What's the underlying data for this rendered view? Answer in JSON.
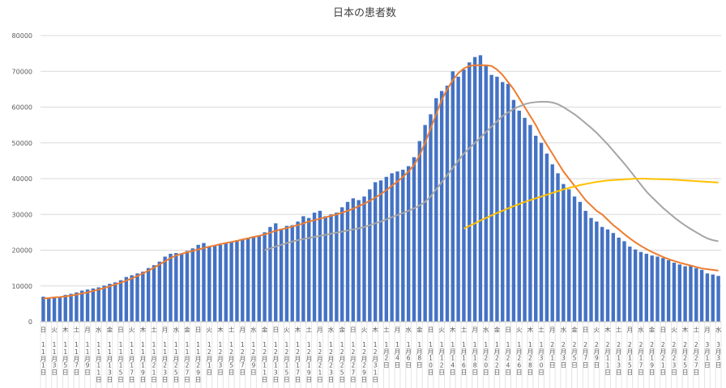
{
  "chart_data": {
    "type": "bar",
    "title": "日本の患者数",
    "color": "#4472c4",
    "ylim": [
      0,
      80000
    ],
    "yticks": [
      0,
      10000,
      20000,
      30000,
      40000,
      50000,
      60000,
      70000,
      80000
    ],
    "grid": true,
    "categories": [
      "11月1日",
      null,
      "11月3日",
      null,
      "11月5日",
      null,
      "11月7日",
      null,
      "11月9日",
      null,
      "11月11日",
      null,
      "11月13日",
      null,
      "11月15日",
      null,
      "11月17日",
      null,
      "11月19日",
      null,
      "11月21日",
      null,
      "11月23日",
      null,
      "11月25日",
      null,
      "11月27日",
      null,
      "11月29日",
      null,
      "12月1日",
      null,
      "12月3日",
      null,
      "12月5日",
      null,
      "12月7日",
      null,
      "12月9日",
      null,
      "12月11日",
      null,
      "12月13日",
      null,
      "12月15日",
      null,
      "12月17日",
      null,
      "12月19日",
      null,
      "12月21日",
      null,
      "12月23日",
      null,
      "12月25日",
      null,
      "12月27日",
      null,
      "12月29日",
      null,
      "12月31日",
      null,
      "1月2日",
      null,
      "1月4日",
      null,
      "1月6日",
      null,
      "1月8日",
      null,
      "1月10日",
      null,
      "1月12日",
      null,
      "1月14日",
      null,
      "1月16日",
      null,
      "1月18日",
      null,
      "1月20日",
      null,
      "1月22日",
      null,
      "1月24日",
      null,
      "1月26日",
      null,
      "1月28日",
      null,
      "1月30日",
      null,
      "2月1日",
      null,
      "2月3日",
      null,
      "2月5日",
      null,
      "2月7日",
      null,
      "2月9日",
      null,
      "2月11日",
      null,
      "2月13日",
      null,
      "2月15日",
      null,
      "2月17日",
      null,
      "2月19日",
      null,
      "2月21日",
      null,
      "2月23日",
      null,
      "2月25日",
      null,
      "2月27日",
      null,
      "3月1日",
      null,
      "3月3日"
    ],
    "weekdays": [
      "日",
      null,
      "火",
      null,
      "木",
      null,
      "土",
      null,
      "月",
      null,
      "水",
      null,
      "金",
      null,
      "日",
      null,
      "火",
      null,
      "木",
      null,
      "土",
      null,
      "月",
      null,
      "水",
      null,
      "金",
      null,
      "日",
      null,
      "火",
      null,
      "木",
      null,
      "土",
      null,
      "月",
      null,
      "水",
      null,
      "金",
      null,
      "日",
      null,
      "火",
      null,
      "木",
      null,
      "土",
      null,
      "月",
      null,
      "水",
      null,
      "金",
      null,
      "日",
      null,
      "火",
      null,
      "木",
      null,
      "土",
      null,
      "月",
      null,
      "水",
      null,
      "金",
      null,
      "日",
      null,
      "火",
      null,
      "木",
      null,
      "土",
      null,
      "月",
      null,
      "水",
      null,
      "金",
      null,
      "日",
      null,
      "火",
      null,
      "木",
      null,
      "土",
      null,
      "月",
      null,
      "水",
      null,
      "金",
      null,
      "日",
      null,
      "火",
      null,
      "木",
      null,
      "土",
      null,
      "月",
      null,
      "水",
      null,
      "金",
      null,
      "日",
      null,
      "火",
      null,
      "木",
      null,
      "土",
      null,
      "月",
      null,
      "水"
    ],
    "values": [
      7000,
      6600,
      6800,
      7000,
      7500,
      7800,
      8200,
      8700,
      9000,
      9300,
      9600,
      10100,
      10600,
      11000,
      11600,
      12500,
      13000,
      13500,
      14000,
      15000,
      15800,
      16800,
      18200,
      19000,
      19200,
      19000,
      19800,
      20500,
      21500,
      22000,
      21000,
      21200,
      21500,
      22000,
      22300,
      22800,
      23000,
      23500,
      23800,
      24200,
      25000,
      26500,
      27500,
      26000,
      26800,
      27000,
      28000,
      29500,
      29000,
      30500,
      31000,
      29500,
      30000,
      30500,
      32000,
      33500,
      34500,
      34000,
      35000,
      37000,
      39000,
      39500,
      40500,
      41500,
      42000,
      42500,
      43500,
      46000,
      50500,
      55000,
      58000,
      62500,
      64500,
      66000,
      70000,
      68500,
      70500,
      72500,
      74000,
      74500,
      71500,
      69000,
      68500,
      67000,
      66500,
      62000,
      59000,
      57000,
      55000,
      52000,
      50000,
      47000,
      44000,
      41500,
      38500,
      37000,
      35000,
      33500,
      31000,
      29000,
      28000,
      26500,
      25800,
      24800,
      23500,
      22500,
      21000,
      20200,
      19500,
      19000,
      18500,
      18200,
      17800,
      17200,
      16500,
      16000,
      15500,
      15800,
      15000,
      14500,
      13500,
      13200,
      12800
    ],
    "lines": [
      {
        "color": "#ed7d31",
        "values": [
          6500,
          6600,
          6800,
          6900,
          7100,
          7300,
          7600,
          7900,
          8200,
          8600,
          9000,
          9400,
          9900,
          10400,
          10900,
          11500,
          12100,
          12800,
          13500,
          14300,
          15100,
          16000,
          16900,
          17800,
          18500,
          19000,
          19400,
          19800,
          20200,
          20600,
          21000,
          21300,
          21700,
          22000,
          22300,
          22600,
          23000,
          23300,
          23700,
          24000,
          24400,
          24900,
          25400,
          25800,
          26200,
          26600,
          27000,
          27500,
          28000,
          28400,
          28800,
          29200,
          29600,
          30000,
          30500,
          31000,
          31600,
          32300,
          33000,
          33800,
          34700,
          35700,
          36800,
          38000,
          39200,
          40500,
          42000,
          43800,
          46500,
          50000,
          54000,
          58000,
          62000,
          65000,
          67500,
          69500,
          70800,
          71500,
          71700,
          71700,
          71700,
          71500,
          70500,
          69000,
          67000,
          65000,
          62500,
          60000,
          57500,
          55000,
          52000,
          49500,
          47000,
          44500,
          42000,
          40000,
          38000,
          36000,
          34000,
          32500,
          31000,
          30000,
          28500,
          27000,
          25800,
          24500,
          23300,
          22200,
          21200,
          20300,
          19500,
          18800,
          18100,
          17500,
          17000,
          16500,
          16100,
          15700,
          15300,
          14900,
          14700,
          14500,
          14300
        ]
      },
      {
        "color": "#a5a5a5",
        "values": [
          null,
          null,
          null,
          null,
          null,
          null,
          null,
          null,
          null,
          null,
          null,
          null,
          null,
          null,
          null,
          null,
          null,
          null,
          null,
          null,
          null,
          null,
          null,
          null,
          null,
          null,
          null,
          null,
          null,
          null,
          null,
          null,
          null,
          null,
          null,
          null,
          null,
          null,
          null,
          null,
          20000,
          20500,
          21000,
          21500,
          22000,
          22400,
          22800,
          23100,
          23400,
          23700,
          24000,
          24300,
          24600,
          24900,
          25200,
          25500,
          25800,
          26100,
          26500,
          27000,
          27500,
          28000,
          28600,
          29200,
          29800,
          30400,
          31000,
          31700,
          32500,
          33500,
          35000,
          37000,
          39000,
          41000,
          43000,
          45000,
          47000,
          48500,
          50000,
          51500,
          53000,
          54500,
          56000,
          57500,
          58500,
          59500,
          60200,
          60800,
          61200,
          61400,
          61500,
          61500,
          61300,
          60800,
          60000,
          59000,
          58000,
          56800,
          55500,
          54200,
          52800,
          51200,
          49600,
          47800,
          46000,
          44200,
          42300,
          40300,
          38300,
          36400,
          34800,
          33300,
          31800,
          30500,
          29200,
          28000,
          26900,
          25900,
          25000,
          24100,
          23300,
          22800,
          22500
        ]
      },
      {
        "color": "#ffc000",
        "values": [
          null,
          null,
          null,
          null,
          null,
          null,
          null,
          null,
          null,
          null,
          null,
          null,
          null,
          null,
          null,
          null,
          null,
          null,
          null,
          null,
          null,
          null,
          null,
          null,
          null,
          null,
          null,
          null,
          null,
          null,
          null,
          null,
          null,
          null,
          null,
          null,
          null,
          null,
          null,
          null,
          null,
          null,
          null,
          null,
          null,
          null,
          null,
          null,
          null,
          null,
          null,
          null,
          null,
          null,
          null,
          null,
          null,
          null,
          null,
          null,
          null,
          null,
          null,
          null,
          null,
          null,
          null,
          null,
          null,
          null,
          null,
          null,
          null,
          null,
          null,
          null,
          26000,
          26800,
          27500,
          28300,
          29000,
          29700,
          30400,
          31000,
          31700,
          32300,
          32900,
          33500,
          34000,
          34500,
          35000,
          35500,
          36000,
          36500,
          37000,
          37400,
          37800,
          38200,
          38500,
          38800,
          39100,
          39300,
          39500,
          39600,
          39700,
          39800,
          39900,
          40000,
          40000,
          40000,
          39900,
          39900,
          39800,
          39800,
          39700,
          39600,
          39500,
          39400,
          39300,
          39200,
          39100,
          39000,
          38900
        ]
      }
    ]
  }
}
